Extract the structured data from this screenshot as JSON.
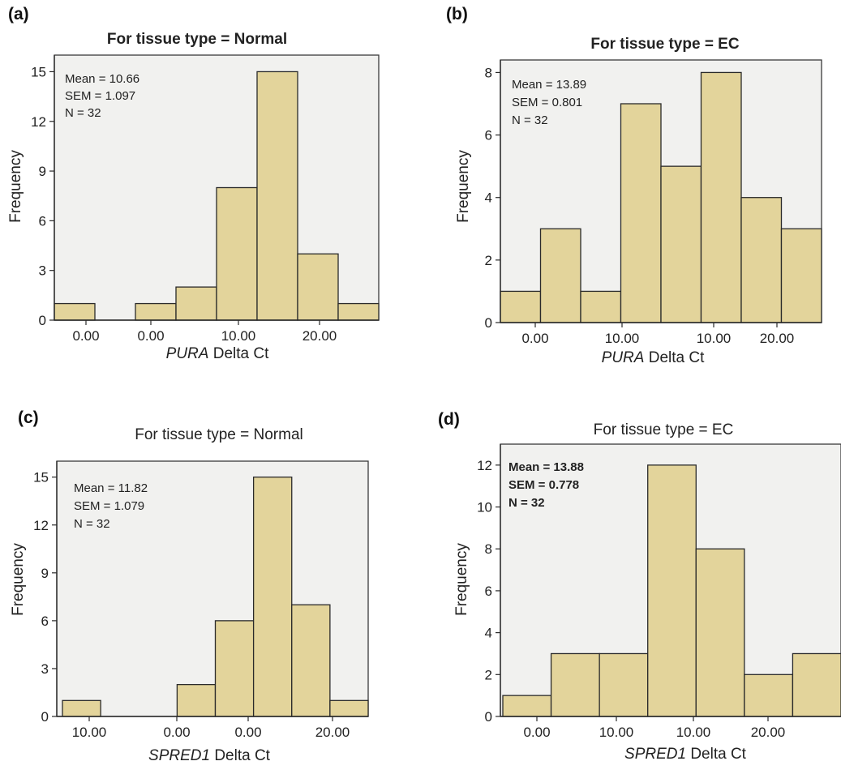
{
  "chart_data": [
    {
      "panel": "(a)",
      "type": "bar",
      "title": "For tissue type = Normal",
      "title_bold": true,
      "xlabel_gene": "PURA",
      "xlabel_rest": " Delta Ct",
      "ylabel": "Frequency",
      "ylim": [
        0,
        16
      ],
      "yticks": [
        0,
        3,
        6,
        9,
        12,
        15
      ],
      "values": [
        1,
        0,
        1,
        2,
        8,
        15,
        4,
        1
      ],
      "xtick_labels": [
        "0.00",
        "0.00",
        "10.00",
        "20.00"
      ],
      "stats": [
        "Mean = 10.66",
        "SEM = 1.097",
        "N = 32"
      ],
      "stats_bold": false
    },
    {
      "panel": "(b)",
      "type": "bar",
      "title": "For tissue type = EC",
      "title_bold": true,
      "xlabel_gene": "PURA",
      "xlabel_rest": " Delta Ct",
      "ylabel": "Frequency",
      "ylim": [
        0,
        8.4
      ],
      "yticks": [
        0,
        2,
        4,
        6,
        8
      ],
      "values": [
        1,
        3,
        1,
        7,
        5,
        8,
        4,
        3
      ],
      "xtick_labels": [
        "0.00",
        "10.00",
        "10.00",
        "20.00"
      ],
      "stats": [
        "Mean = 13.89",
        "SEM = 0.801",
        "N = 32"
      ],
      "stats_bold": false
    },
    {
      "panel": "(c)",
      "type": "bar",
      "title": "For tissue type = Normal",
      "title_bold": false,
      "xlabel_gene": "SPRED1",
      "xlabel_rest": " Delta Ct",
      "ylabel": "Frequency",
      "ylim": [
        0,
        16
      ],
      "yticks": [
        0,
        3,
        6,
        9,
        12,
        15
      ],
      "values": [
        1,
        0,
        0,
        2,
        6,
        15,
        7,
        1
      ],
      "xtick_labels": [
        "10.00",
        "0.00",
        "0.00",
        "20.00"
      ],
      "stats": [
        "Mean = 11.82",
        "SEM = 1.079",
        "N = 32"
      ],
      "stats_bold": false
    },
    {
      "panel": "(d)",
      "type": "bar",
      "title": "For tissue type = EC",
      "title_bold": false,
      "xlabel_gene": "SPRED1",
      "xlabel_rest": " Delta Ct",
      "ylabel": "Frequency",
      "ylim": [
        0,
        13
      ],
      "yticks": [
        0,
        2,
        4,
        6,
        8,
        10,
        12
      ],
      "values": [
        1,
        3,
        3,
        12,
        8,
        2,
        3
      ],
      "xtick_labels": [
        "0.00",
        "10.00",
        "10.00",
        "20.00"
      ],
      "stats": [
        "Mean = 13.88",
        "SEM = 0.778",
        "N = 32"
      ],
      "stats_bold": true
    }
  ]
}
